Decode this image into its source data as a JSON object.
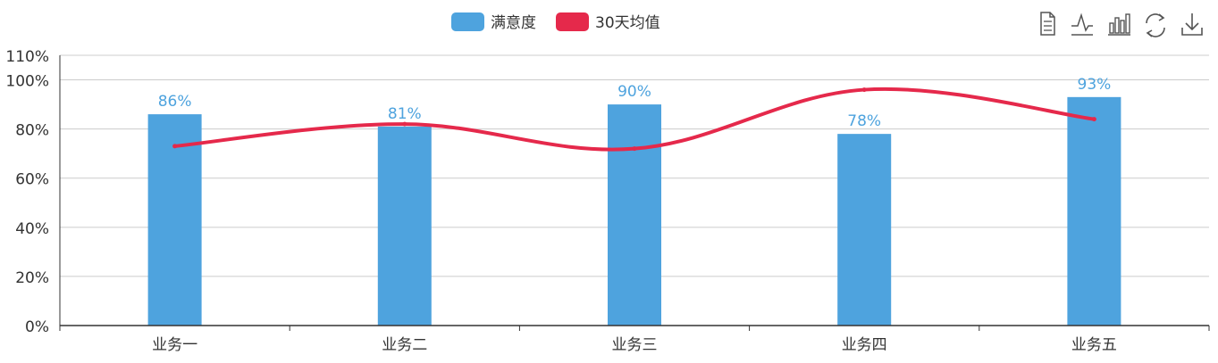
{
  "legend": {
    "items": [
      {
        "label": "满意度",
        "color": "#4ea3de",
        "shape": "rounded-rect"
      },
      {
        "label": "30天均值",
        "color": "#e5294b",
        "shape": "rounded-rect"
      }
    ]
  },
  "toolbox": {
    "icons": [
      "data-view-icon",
      "line-chart-icon",
      "bar-chart-icon",
      "restore-icon",
      "download-icon"
    ]
  },
  "colors": {
    "bar": "#4ea3de",
    "line": "#e5294b",
    "bar_label": "#4ea3de",
    "axis": "#333333",
    "grid": "#cccccc",
    "tick_text": "#333333",
    "toolbox": "#555555"
  },
  "chart_data": {
    "type": "bar",
    "categories": [
      "业务一",
      "业务二",
      "业务三",
      "业务四",
      "业务五"
    ],
    "series": [
      {
        "name": "满意度",
        "type": "bar",
        "values": [
          86,
          81,
          90,
          78,
          93
        ],
        "labels": [
          "86%",
          "81%",
          "90%",
          "78%",
          "93%"
        ]
      },
      {
        "name": "30天均值",
        "type": "line",
        "values": [
          73,
          82,
          72,
          96,
          84
        ]
      }
    ],
    "yticks": [
      "0%",
      "20%",
      "40%",
      "60%",
      "80%",
      "100%",
      "110%"
    ],
    "ytick_values": [
      0,
      20,
      40,
      60,
      80,
      100,
      110
    ],
    "ylim": [
      0,
      110
    ],
    "grid": true,
    "legend_position": "top-center"
  }
}
